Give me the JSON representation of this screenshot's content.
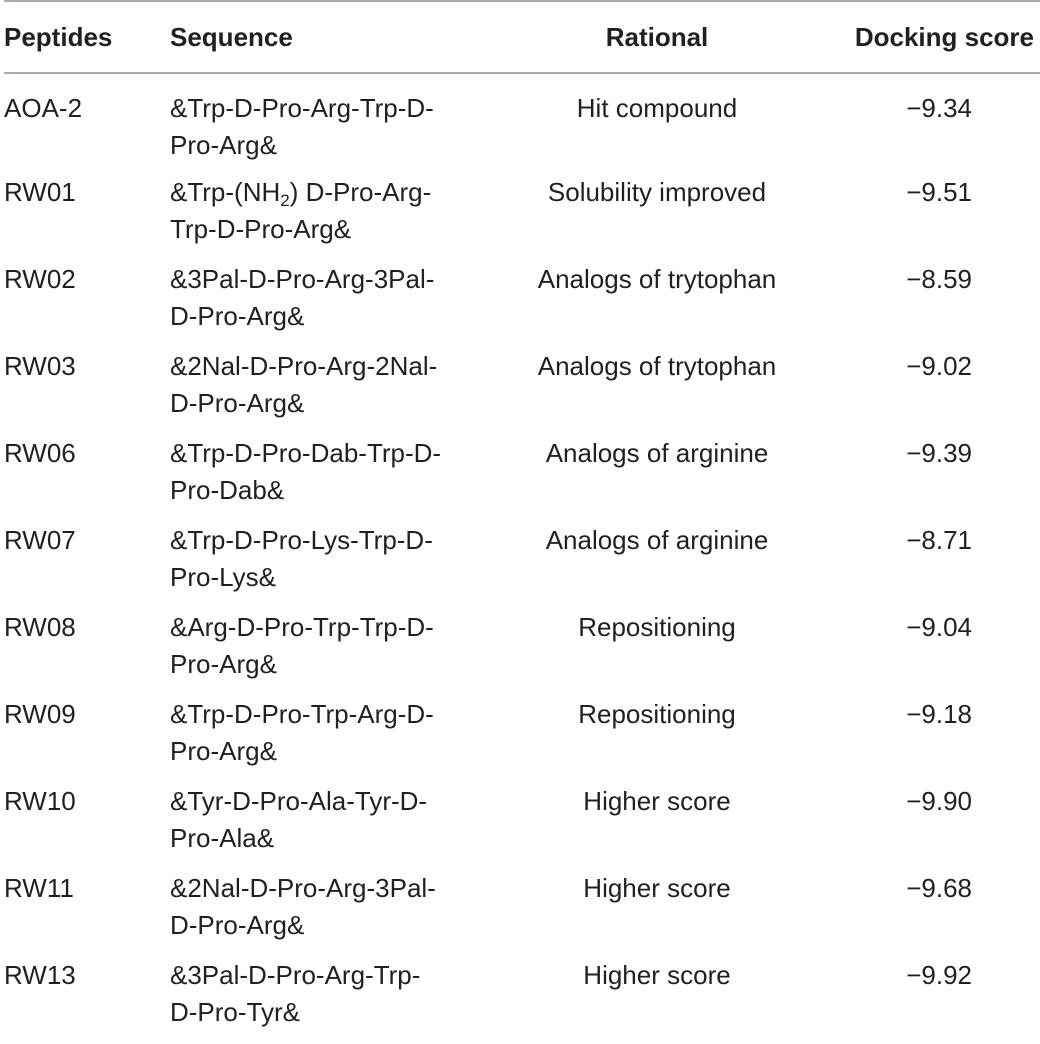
{
  "table": {
    "headers": {
      "peptides": "Peptides",
      "sequence": "Sequence",
      "rational": "Rational",
      "docking_score": "Docking score"
    },
    "rows": [
      {
        "peptide": "AOA-2",
        "seq_line1": "&Trp-D-Pro-Arg-Trp-D-",
        "seq_line2": "Pro-Arg&",
        "rational": "Hit compound",
        "score": "−9.34"
      },
      {
        "peptide": "RW01",
        "seq_line1_pre": "&Trp-(NH",
        "seq_line1_sub": "2",
        "seq_line1_post": ") D-Pro-Arg-",
        "seq_line2": "Trp-D-Pro-Arg&",
        "rational": "Solubility improved",
        "score": "−9.51"
      },
      {
        "peptide": "RW02",
        "seq_line1": "&3Pal-D-Pro-Arg-3Pal-",
        "seq_line2": "D-Pro-Arg&",
        "rational": "Analogs of trytophan",
        "score": "−8.59"
      },
      {
        "peptide": "RW03",
        "seq_line1": "&2Nal-D-Pro-Arg-2Nal-",
        "seq_line2": "D-Pro-Arg&",
        "rational": "Analogs of trytophan",
        "score": "−9.02"
      },
      {
        "peptide": "RW06",
        "seq_line1": "&Trp-D-Pro-Dab-Trp-D-",
        "seq_line2": "Pro-Dab&",
        "rational": "Analogs of arginine",
        "score": "−9.39"
      },
      {
        "peptide": "RW07",
        "seq_line1": "&Trp-D-Pro-Lys-Trp-D-",
        "seq_line2": "Pro-Lys&",
        "rational": "Analogs of arginine",
        "score": "−8.71"
      },
      {
        "peptide": "RW08",
        "seq_line1": "&Arg-D-Pro-Trp-Trp-D-",
        "seq_line2": "Pro-Arg&",
        "rational": "Repositioning",
        "score": "−9.04"
      },
      {
        "peptide": "RW09",
        "seq_line1": "&Trp-D-Pro-Trp-Arg-D-",
        "seq_line2": "Pro-Arg&",
        "rational": "Repositioning",
        "score": "−9.18"
      },
      {
        "peptide": "RW10",
        "seq_line1": "&Tyr-D-Pro-Ala-Tyr-D-",
        "seq_line2": "Pro-Ala&",
        "rational": "Higher score",
        "score": "−9.90"
      },
      {
        "peptide": "RW11",
        "seq_line1": "&2Nal-D-Pro-Arg-3Pal-",
        "seq_line2": "D-Pro-Arg&",
        "rational": "Higher score",
        "score": "−9.68"
      },
      {
        "peptide": "RW13",
        "seq_line1": "&3Pal-D-Pro-Arg-Trp-",
        "seq_line2": "D-Pro-Tyr&",
        "rational": "Higher score",
        "score": "−9.92"
      }
    ]
  },
  "colors": {
    "text": "#231f20",
    "rule": "#a7a9ac"
  }
}
